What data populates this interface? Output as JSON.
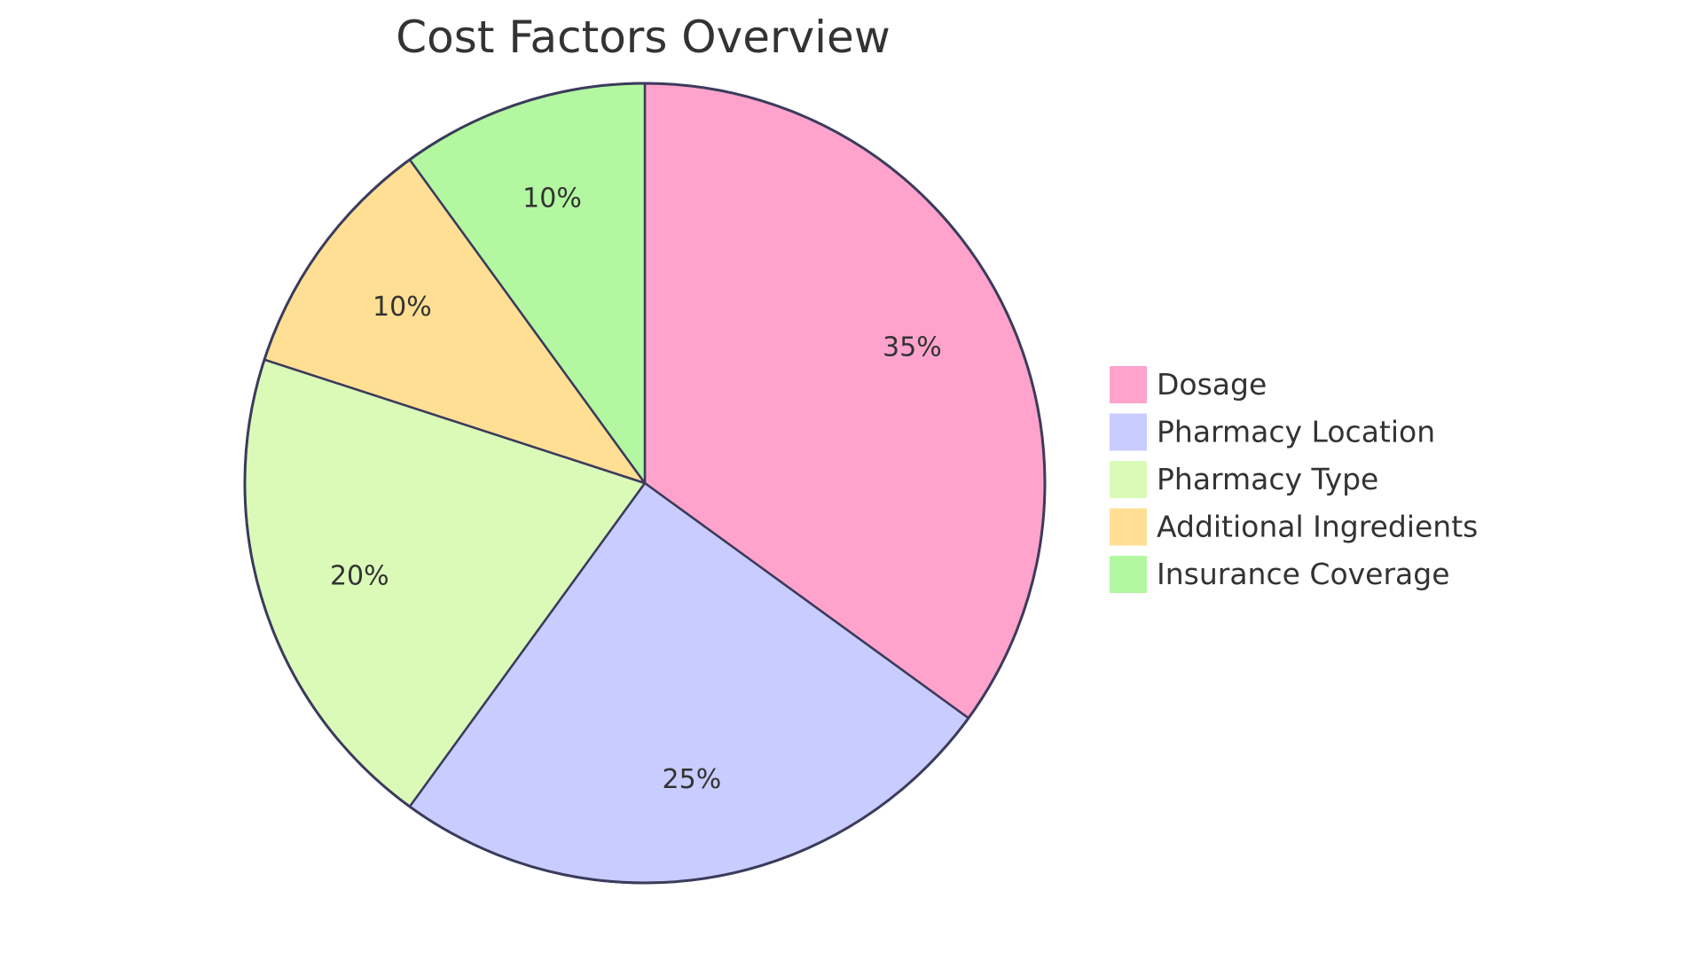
{
  "chart_data": {
    "type": "pie",
    "title": "Cost Factors Overview",
    "categories": [
      "Dosage",
      "Pharmacy Location",
      "Pharmacy Type",
      "Additional Ingredients",
      "Insurance Coverage"
    ],
    "values": [
      35,
      25,
      20,
      10,
      10
    ],
    "value_labels": [
      "35%",
      "25%",
      "20%",
      "10%",
      "10%"
    ],
    "colors": [
      "#ffa3cc",
      "#c9ccff",
      "#dbfab8",
      "#ffdf94",
      "#b3f7a1"
    ],
    "stroke_color": "#3b3b5c",
    "start_angle": "12 o'clock",
    "direction": "clockwise",
    "legend_placement": "right"
  }
}
